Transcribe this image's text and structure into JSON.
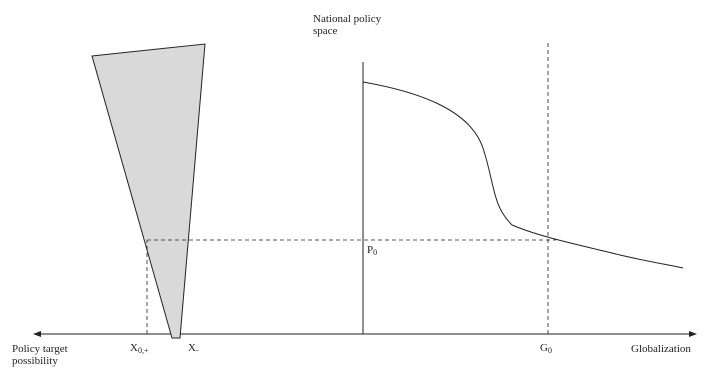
{
  "diagram": {
    "y_axis_title_line1": "National policy",
    "y_axis_title_line2": "space",
    "x_axis_right_label": "Globalization",
    "x_axis_left_label_line1": "Policy target",
    "x_axis_left_label_line2": "possibility",
    "p_label_base": "P",
    "p_label_sub": "0",
    "g_label_base": "G",
    "g_label_sub": "0",
    "x0_label_base": "X",
    "x0_label_sub": "0,+",
    "x_minus_label_base": "X",
    "x_minus_label_sub": "-"
  },
  "colors": {
    "line": "#222222",
    "wedge_fill": "#d9d9d9"
  }
}
